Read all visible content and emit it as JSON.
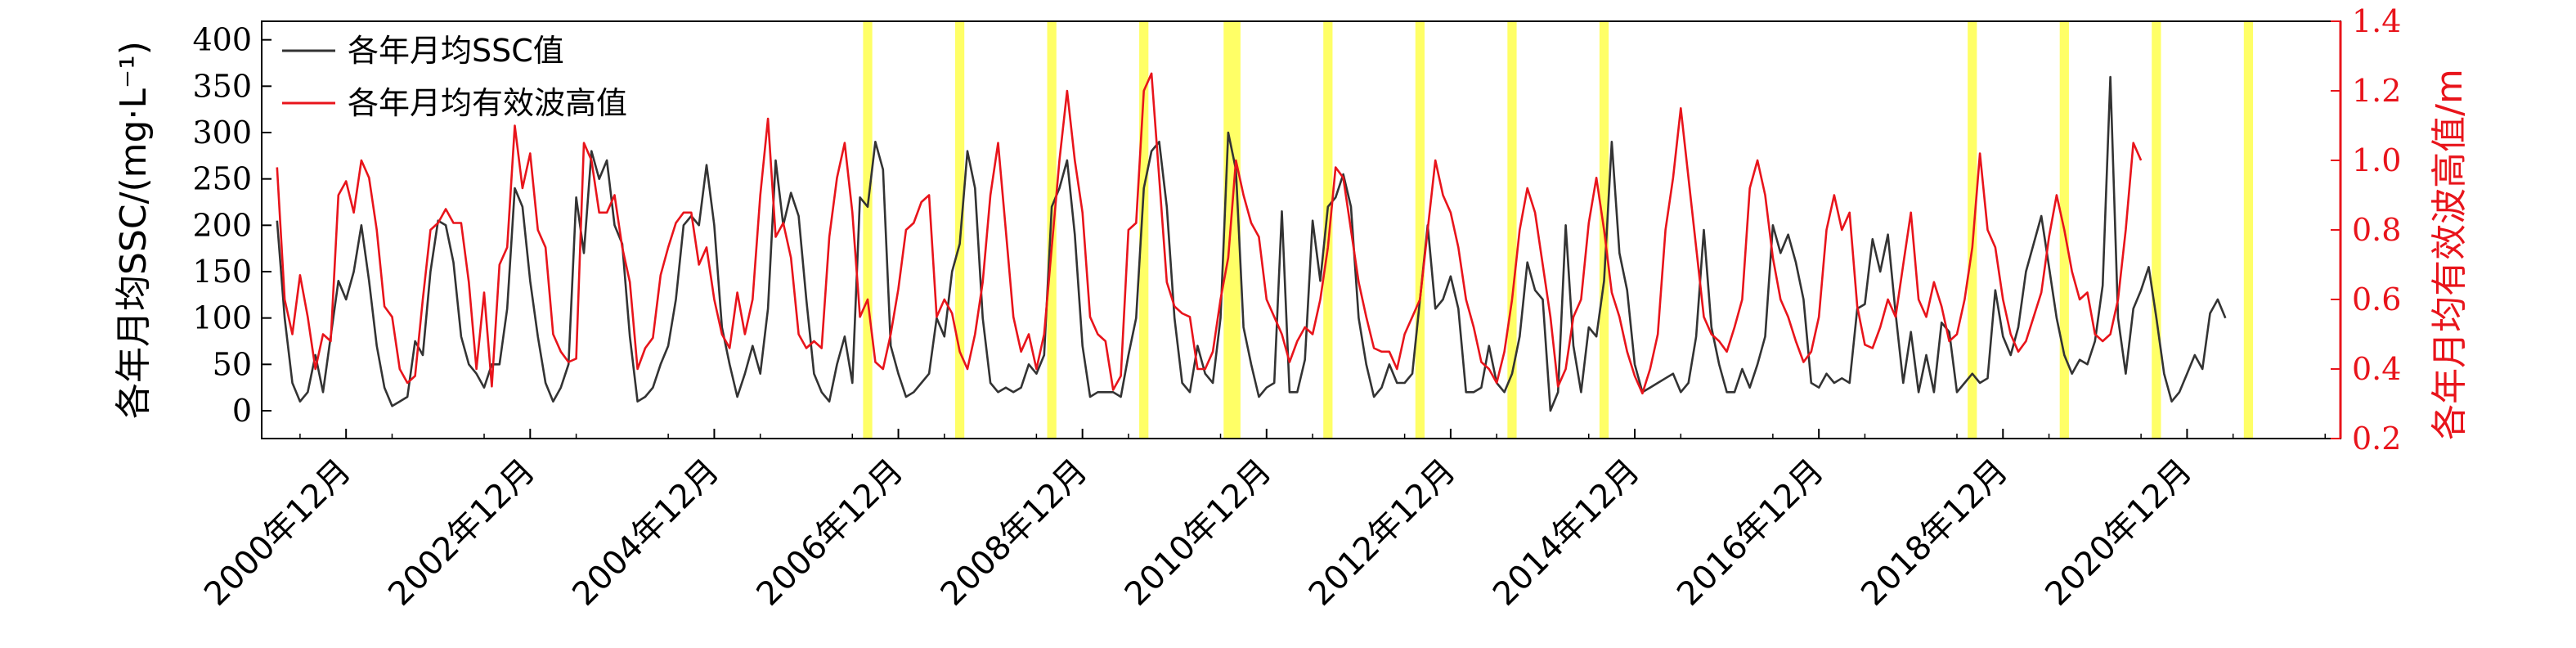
{
  "chart_data": {
    "type": "line",
    "title": "",
    "xlabel": "",
    "ylabel": "各年月均SSC/(mg·L⁻¹)",
    "y2label": "各年月均有效波高值/m",
    "ylim": [
      -30,
      420
    ],
    "y2lim": [
      0.2,
      1.4
    ],
    "xlim": [
      "2000-01",
      "2022-08"
    ],
    "yticks": [
      0,
      50,
      100,
      150,
      200,
      250,
      300,
      350,
      400
    ],
    "y2ticks": [
      "0.2",
      "0.4",
      "0.6",
      "0.8",
      "1.0",
      "1.2",
      "1.4"
    ],
    "xtick_labels": [
      "2000年12月",
      "2002年12月",
      "2004年12月",
      "2006年12月",
      "2008年12月",
      "2010年12月",
      "2012年12月",
      "2014年12月",
      "2016年12月",
      "2018年12月",
      "2020年12月"
    ],
    "grid": false,
    "legend_position": "top-left",
    "colors": {
      "ssc": "#333333",
      "wave": "#e8141b",
      "highlight": "#ffff66"
    },
    "highlight_months": [
      "2006-08",
      "2007-08",
      "2008-08",
      "2009-08",
      "2010-07",
      "2010-08",
      "2011-08",
      "2012-08",
      "2013-08",
      "2014-08",
      "2018-08",
      "2019-08",
      "2020-08",
      "2021-08"
    ],
    "start": "2000-03",
    "series": [
      {
        "name": "各年月均SSC值",
        "axis": "left",
        "values": [
          205,
          100,
          30,
          10,
          20,
          60,
          20,
          80,
          140,
          120,
          150,
          200,
          140,
          70,
          25,
          5,
          10,
          15,
          75,
          60,
          150,
          205,
          200,
          160,
          80,
          50,
          40,
          25,
          50,
          50,
          110,
          240,
          220,
          140,
          80,
          30,
          10,
          25,
          50,
          230,
          170,
          280,
          250,
          270,
          200,
          180,
          80,
          10,
          15,
          25,
          50,
          70,
          120,
          200,
          210,
          200,
          265,
          200,
          90,
          50,
          15,
          40,
          70,
          40,
          110,
          270,
          200,
          235,
          210,
          120,
          40,
          20,
          10,
          50,
          80,
          30,
          230,
          220,
          290,
          260,
          70,
          40,
          15,
          20,
          30,
          40,
          100,
          80,
          150,
          180,
          280,
          240,
          100,
          30,
          20,
          25,
          20,
          25,
          50,
          40,
          60,
          220,
          240,
          270,
          190,
          70,
          15,
          20,
          20,
          20,
          15,
          60,
          100,
          240,
          280,
          290,
          220,
          100,
          30,
          20,
          70,
          40,
          30,
          100,
          300,
          260,
          90,
          50,
          15,
          25,
          30,
          215,
          20,
          20,
          55,
          205,
          140,
          220,
          230,
          255,
          220,
          100,
          50,
          15,
          25,
          50,
          30,
          30,
          40,
          120,
          200,
          110,
          120,
          145,
          110,
          20,
          20,
          25,
          70,
          30,
          20,
          40,
          80,
          160,
          130,
          120,
          0,
          20,
          200,
          70,
          20,
          90,
          80,
          140,
          290,
          170,
          130,
          50,
          20,
          25,
          30,
          35,
          40,
          20,
          30,
          80,
          195,
          90,
          50,
          20,
          20,
          45,
          25,
          50,
          80,
          200,
          170,
          190,
          160,
          120,
          30,
          25,
          40,
          30,
          35,
          30,
          110,
          115,
          185,
          150,
          190,
          105,
          30,
          85,
          20,
          60,
          20,
          95,
          85,
          20,
          30,
          40,
          30,
          35,
          130,
          80,
          60,
          90,
          150,
          180,
          210,
          155,
          100,
          60,
          40,
          55,
          50,
          75,
          135,
          360,
          100,
          40,
          110,
          130,
          155,
          100,
          40,
          10,
          20,
          40,
          60,
          45,
          105,
          120,
          100
        ]
      },
      {
        "name": "各年月均有效波高值",
        "axis": "right",
        "values": [
          0.98,
          0.6,
          0.5,
          0.67,
          0.55,
          0.4,
          0.5,
          0.48,
          0.9,
          0.94,
          0.85,
          1.0,
          0.95,
          0.8,
          0.58,
          0.55,
          0.4,
          0.36,
          0.38,
          0.6,
          0.8,
          0.82,
          0.86,
          0.82,
          0.82,
          0.65,
          0.4,
          0.62,
          0.35,
          0.7,
          0.75,
          1.1,
          0.92,
          1.02,
          0.8,
          0.75,
          0.5,
          0.45,
          0.42,
          0.43,
          1.05,
          1.0,
          0.85,
          0.85,
          0.9,
          0.75,
          0.65,
          0.4,
          0.46,
          0.49,
          0.67,
          0.75,
          0.82,
          0.85,
          0.85,
          0.7,
          0.75,
          0.6,
          0.5,
          0.46,
          0.62,
          0.5,
          0.6,
          0.9,
          1.12,
          0.78,
          0.82,
          0.72,
          0.5,
          0.46,
          0.48,
          0.46,
          0.78,
          0.95,
          1.05,
          0.85,
          0.55,
          0.6,
          0.42,
          0.4,
          0.5,
          0.63,
          0.8,
          0.82,
          0.88,
          0.9,
          0.55,
          0.6,
          0.56,
          0.45,
          0.4,
          0.5,
          0.65,
          0.9,
          1.05,
          0.8,
          0.55,
          0.45,
          0.5,
          0.4,
          0.5,
          0.75,
          1.0,
          1.2,
          1.0,
          0.85,
          0.55,
          0.5,
          0.48,
          0.34,
          0.38,
          0.8,
          0.82,
          1.2,
          1.25,
          0.95,
          0.65,
          0.58,
          0.56,
          0.55,
          0.4,
          0.4,
          0.45,
          0.6,
          0.72,
          1.0,
          0.9,
          0.82,
          0.78,
          0.6,
          0.55,
          0.5,
          0.42,
          0.48,
          0.52,
          0.5,
          0.6,
          0.75,
          0.98,
          0.95,
          0.8,
          0.65,
          0.55,
          0.46,
          0.45,
          0.45,
          0.4,
          0.5,
          0.55,
          0.6,
          0.8,
          1.0,
          0.9,
          0.85,
          0.75,
          0.6,
          0.52,
          0.42,
          0.4,
          0.36,
          0.45,
          0.6,
          0.8,
          0.92,
          0.85,
          0.7,
          0.55,
          0.35,
          0.4,
          0.55,
          0.6,
          0.82,
          0.95,
          0.8,
          0.62,
          0.55,
          0.45,
          0.38,
          0.33,
          0.4,
          0.5,
          0.8,
          0.95,
          1.15,
          0.95,
          0.75,
          0.55,
          0.5,
          0.48,
          0.45,
          0.52,
          0.6,
          0.92,
          1.0,
          0.9,
          0.72,
          0.6,
          0.55,
          0.48,
          0.42,
          0.45,
          0.55,
          0.8,
          0.9,
          0.8,
          0.85,
          0.58,
          0.47,
          0.46,
          0.52,
          0.6,
          0.55,
          0.7,
          0.85,
          0.6,
          0.55,
          0.65,
          0.58,
          0.48,
          0.5,
          0.6,
          0.75,
          1.02,
          0.8,
          0.75,
          0.6,
          0.5,
          0.45,
          0.48,
          0.55,
          0.62,
          0.78,
          0.9,
          0.8,
          0.68,
          0.6,
          0.62,
          0.5,
          0.48,
          0.5,
          0.6,
          0.8,
          1.05,
          1.0
        ]
      }
    ]
  }
}
